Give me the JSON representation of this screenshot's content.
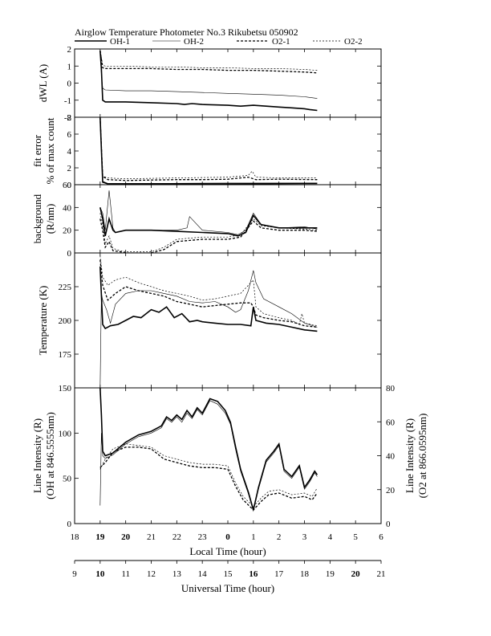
{
  "title": "Airglow Temperature Photometer No.3   Rikubetsu   050902",
  "legend": [
    {
      "name": "OH-1",
      "stroke": "#000000",
      "width": 1.6,
      "dash": ""
    },
    {
      "name": "OH-2",
      "stroke": "#000000",
      "width": 0.6,
      "dash": ""
    },
    {
      "name": "O2-1",
      "stroke": "#000000",
      "width": 1.3,
      "dash": "3,2"
    },
    {
      "name": "O2-2",
      "stroke": "#000000",
      "width": 0.7,
      "dash": "2,2"
    }
  ],
  "x_axis": {
    "range": [
      9,
      21
    ],
    "lt_label": "Local Time (hour)",
    "ut_label": "Universal Time (hour)",
    "lt_ticks": [
      {
        "x": 9,
        "label": "18",
        "bold": false
      },
      {
        "x": 10,
        "label": "19",
        "bold": true
      },
      {
        "x": 11,
        "label": "20",
        "bold": true
      },
      {
        "x": 12,
        "label": "21",
        "bold": false
      },
      {
        "x": 13,
        "label": "22",
        "bold": false
      },
      {
        "x": 14,
        "label": "23",
        "bold": false
      },
      {
        "x": 15,
        "label": "0",
        "bold": true
      },
      {
        "x": 16,
        "label": "1",
        "bold": false
      },
      {
        "x": 17,
        "label": "2",
        "bold": false
      },
      {
        "x": 18,
        "label": "3",
        "bold": false
      },
      {
        "x": 19,
        "label": "4",
        "bold": false
      },
      {
        "x": 20,
        "label": "5",
        "bold": false
      },
      {
        "x": 21,
        "label": "6",
        "bold": false
      }
    ],
    "ut_ticks": [
      {
        "x": 9,
        "label": "9",
        "bold": false
      },
      {
        "x": 10,
        "label": "10",
        "bold": true
      },
      {
        "x": 11,
        "label": "11",
        "bold": false
      },
      {
        "x": 12,
        "label": "12",
        "bold": false
      },
      {
        "x": 13,
        "label": "13",
        "bold": false
      },
      {
        "x": 14,
        "label": "14",
        "bold": false
      },
      {
        "x": 15,
        "label": "15",
        "bold": false
      },
      {
        "x": 16,
        "label": "16",
        "bold": true
      },
      {
        "x": 17,
        "label": "17",
        "bold": false
      },
      {
        "x": 18,
        "label": "18",
        "bold": false
      },
      {
        "x": 19,
        "label": "19",
        "bold": false
      },
      {
        "x": 20,
        "label": "20",
        "bold": true
      },
      {
        "x": 21,
        "label": "21",
        "bold": false
      }
    ]
  },
  "chart_data": [
    {
      "type": "line",
      "panel": "dwl",
      "ylabel": [
        "dWL (A)"
      ],
      "ylim": [
        -2,
        2
      ],
      "yticks": [
        -2,
        -1,
        0,
        1,
        2
      ],
      "series": [
        {
          "name": "OH-1",
          "x": [
            10.0,
            10.05,
            10.1,
            10.2,
            11,
            12,
            13,
            13.3,
            13.6,
            14,
            15,
            15.5,
            16,
            16.5,
            17,
            17.5,
            18,
            18.2,
            18.5
          ],
          "y": [
            1.9,
            0.8,
            -1.0,
            -1.1,
            -1.1,
            -1.15,
            -1.2,
            -1.25,
            -1.2,
            -1.25,
            -1.3,
            -1.35,
            -1.3,
            -1.35,
            -1.4,
            -1.45,
            -1.5,
            -1.55,
            -1.6
          ]
        },
        {
          "name": "OH-2",
          "x": [
            10.0,
            10.05,
            10.1,
            10.2,
            11,
            12,
            13,
            14,
            15,
            16,
            17,
            18,
            18.5
          ],
          "y": [
            1.9,
            0.5,
            -0.3,
            -0.4,
            -0.45,
            -0.45,
            -0.5,
            -0.55,
            -0.6,
            -0.65,
            -0.7,
            -0.8,
            -0.9
          ]
        },
        {
          "name": "O2-1",
          "x": [
            10.0,
            10.05,
            10.1,
            10.2,
            11,
            12,
            13,
            14,
            15,
            16,
            17,
            18,
            18.5
          ],
          "y": [
            1.9,
            1.4,
            0.9,
            0.85,
            0.85,
            0.85,
            0.8,
            0.8,
            0.75,
            0.75,
            0.7,
            0.65,
            0.6
          ]
        },
        {
          "name": "O2-2",
          "x": [
            10.0,
            10.05,
            10.1,
            10.2,
            11,
            12,
            13,
            14,
            15,
            16,
            17,
            18,
            18.5
          ],
          "y": [
            1.9,
            1.5,
            1.05,
            1.0,
            1.0,
            0.95,
            0.95,
            0.9,
            0.9,
            0.85,
            0.85,
            0.8,
            0.75
          ]
        }
      ]
    },
    {
      "type": "line",
      "panel": "fit-error",
      "ylabel": [
        "fit error",
        "% of max count"
      ],
      "ylim": [
        0,
        8
      ],
      "yticks": [
        0,
        2,
        4,
        6,
        8
      ],
      "series": [
        {
          "name": "OH-1",
          "x": [
            10.0,
            10.1,
            10.3,
            12,
            15,
            18.5
          ],
          "y": [
            8.0,
            0.3,
            0.1,
            0.1,
            0.1,
            0.15
          ]
        },
        {
          "name": "OH-2",
          "x": [
            10.0,
            10.1,
            10.3,
            12,
            15,
            18.5
          ],
          "y": [
            8.0,
            0.4,
            0.15,
            0.15,
            0.2,
            0.2
          ]
        },
        {
          "name": "O2-1",
          "x": [
            10.0,
            10.1,
            10.3,
            11,
            12,
            13,
            14,
            15,
            15.8,
            16.1,
            17,
            18.5
          ],
          "y": [
            8.0,
            1.0,
            0.6,
            0.5,
            0.55,
            0.6,
            0.6,
            0.65,
            0.9,
            0.6,
            0.65,
            0.6
          ]
        },
        {
          "name": "O2-2",
          "x": [
            10.0,
            10.1,
            10.3,
            11,
            12,
            13,
            14,
            15,
            15.8,
            15.95,
            16.1,
            17,
            18.5
          ],
          "y": [
            8.0,
            1.0,
            0.8,
            0.7,
            0.75,
            0.8,
            0.85,
            0.9,
            1.1,
            1.6,
            0.9,
            0.8,
            0.8
          ]
        }
      ]
    },
    {
      "type": "line",
      "panel": "background",
      "ylabel": [
        "background",
        "(R/nm)"
      ],
      "ylim": [
        0,
        60
      ],
      "yticks": [
        0,
        20,
        40,
        60
      ],
      "series": [
        {
          "name": "OH-1",
          "x": [
            10.0,
            10.1,
            10.2,
            10.35,
            10.5,
            10.6,
            11,
            12,
            13,
            14,
            15,
            15.4,
            15.7,
            16.0,
            16.3,
            17,
            18,
            18.5
          ],
          "y": [
            40,
            30,
            15,
            30,
            20,
            18,
            20,
            20,
            19,
            18,
            17,
            15,
            18,
            33,
            25,
            22,
            22,
            22
          ]
        },
        {
          "name": "OH-2",
          "x": [
            10.0,
            10.1,
            10.2,
            10.35,
            10.5,
            10.6,
            11,
            12,
            13,
            13.4,
            13.5,
            14,
            15,
            15.4,
            15.7,
            16.0,
            16.3,
            17,
            18,
            18.5
          ],
          "y": [
            40,
            35,
            20,
            55,
            22,
            18,
            20,
            20,
            20,
            22,
            32,
            20,
            18,
            16,
            20,
            35,
            25,
            22,
            23,
            21
          ]
        },
        {
          "name": "O2-1",
          "x": [
            10.0,
            10.1,
            10.2,
            10.35,
            10.5,
            10.8,
            11,
            12,
            12.5,
            13,
            14,
            15,
            15.5,
            16.0,
            16.3,
            17,
            18,
            18.5
          ],
          "y": [
            30,
            20,
            5,
            10,
            2,
            1,
            0,
            0,
            3,
            10,
            12,
            12,
            14,
            28,
            22,
            20,
            20,
            19
          ]
        },
        {
          "name": "O2-2",
          "x": [
            10.0,
            10.1,
            10.2,
            10.35,
            10.5,
            10.8,
            11,
            12,
            12.5,
            13,
            14,
            15,
            15.5,
            16.0,
            16.3,
            17,
            18,
            18.5
          ],
          "y": [
            35,
            25,
            8,
            15,
            4,
            2,
            1,
            1,
            5,
            12,
            14,
            14,
            16,
            30,
            24,
            22,
            21,
            20
          ]
        }
      ]
    },
    {
      "type": "line",
      "panel": "temperature",
      "ylabel": [
        "Temperature (K)"
      ],
      "ylim": [
        150,
        250
      ],
      "yticks": [
        175,
        200,
        225
      ],
      "series": [
        {
          "name": "OH-1",
          "x": [
            10.0,
            10.1,
            10.2,
            10.4,
            10.7,
            11,
            11.3,
            11.6,
            12,
            12.3,
            12.6,
            12.9,
            13.2,
            13.5,
            13.8,
            14,
            14.5,
            15,
            15.5,
            15.9,
            16.0,
            16.1,
            16.5,
            17,
            17.5,
            18,
            18.5
          ],
          "y": [
            240,
            197,
            194,
            196,
            197,
            200,
            203,
            202,
            208,
            206,
            210,
            202,
            205,
            199,
            200,
            199,
            198,
            197,
            197,
            196,
            210,
            200,
            198,
            197,
            195,
            193,
            192
          ]
        },
        {
          "name": "OH-2",
          "x": [
            10.0,
            10.05,
            10.1,
            10.25,
            10.4,
            10.6,
            11,
            11.5,
            12,
            12.5,
            13,
            13.5,
            14,
            14.5,
            15,
            15.3,
            15.5,
            15.8,
            16.0,
            16.1,
            16.4,
            17,
            17.5,
            18,
            18.5
          ],
          "y": [
            150,
            220,
            215,
            208,
            198,
            212,
            220,
            222,
            222,
            220,
            218,
            214,
            213,
            214,
            210,
            206,
            208,
            222,
            237,
            228,
            216,
            210,
            205,
            198,
            195
          ]
        },
        {
          "name": "O2-1",
          "x": [
            10.0,
            10.1,
            10.3,
            10.6,
            11,
            11.5,
            12,
            12.5,
            13,
            13.5,
            14,
            14.5,
            15,
            15.5,
            15.9,
            16.0,
            16.1,
            16.4,
            17,
            17.5,
            18,
            18.5
          ],
          "y": [
            245,
            226,
            215,
            220,
            225,
            222,
            220,
            218,
            214,
            212,
            210,
            211,
            212,
            213,
            213,
            210,
            204,
            202,
            200,
            199,
            196,
            195
          ]
        },
        {
          "name": "O2-2",
          "x": [
            10.0,
            10.1,
            10.3,
            10.6,
            11,
            11.5,
            12,
            12.5,
            13,
            13.5,
            14,
            14.5,
            15,
            15.5,
            15.8,
            16.0,
            16.1,
            16.4,
            17,
            17.5,
            17.8,
            17.9,
            18,
            18.5
          ],
          "y": [
            248,
            232,
            226,
            230,
            232,
            228,
            225,
            222,
            220,
            218,
            215,
            216,
            218,
            220,
            226,
            230,
            210,
            205,
            202,
            200,
            197,
            205,
            198,
            196
          ]
        }
      ]
    },
    {
      "type": "line",
      "panel": "line-intensity",
      "ylabel": [
        "Line Intensity (R)",
        "(OH at 846.5555nm)"
      ],
      "ylabel_right": [
        "Line Intensity (R)",
        "(O2 at 866.0595nm)"
      ],
      "ylim": [
        0,
        150
      ],
      "yticks": [
        0,
        50,
        100,
        150
      ],
      "ylim_right": [
        0,
        80
      ],
      "yticks_right": [
        0,
        20,
        40,
        60,
        80
      ],
      "series": [
        {
          "name": "OH-1",
          "axis": "left",
          "x": [
            10.0,
            10.05,
            10.1,
            10.2,
            10.5,
            11,
            11.5,
            12,
            12.4,
            12.6,
            12.8,
            13,
            13.2,
            13.4,
            13.6,
            13.8,
            14,
            14.3,
            14.6,
            14.9,
            15.1,
            15.3,
            15.5,
            15.8,
            16.0,
            16.2,
            16.5,
            16.8,
            17.0,
            17.2,
            17.5,
            17.8,
            18.0,
            18.2,
            18.4,
            18.5
          ],
          "y": [
            150,
            120,
            80,
            75,
            78,
            90,
            98,
            102,
            108,
            118,
            114,
            120,
            115,
            125,
            118,
            128,
            122,
            138,
            135,
            125,
            112,
            85,
            60,
            35,
            15,
            40,
            70,
            80,
            88,
            60,
            52,
            64,
            40,
            48,
            58,
            54
          ]
        },
        {
          "name": "OH-2",
          "axis": "left",
          "x": [
            10.0,
            10.05,
            10.1,
            10.2,
            10.5,
            11,
            11.5,
            12,
            12.4,
            12.6,
            12.8,
            13,
            13.2,
            13.4,
            13.6,
            13.8,
            14,
            14.3,
            14.6,
            14.9,
            15.1,
            15.3,
            15.5,
            15.8,
            16.0,
            16.2,
            16.5,
            16.8,
            17.0,
            17.2,
            17.5,
            17.8,
            18.0,
            18.2,
            18.4,
            18.5
          ],
          "y": [
            20,
            100,
            75,
            72,
            76,
            88,
            96,
            100,
            106,
            116,
            112,
            118,
            112,
            122,
            116,
            126,
            120,
            136,
            132,
            122,
            110,
            82,
            58,
            33,
            14,
            38,
            68,
            78,
            86,
            58,
            50,
            62,
            38,
            46,
            56,
            52
          ]
        },
        {
          "name": "O2-1",
          "axis": "right",
          "x": [
            10.0,
            10.2,
            10.5,
            11,
            11.5,
            12,
            12.5,
            13,
            13.5,
            14,
            14.5,
            15,
            15.3,
            15.6,
            16.0,
            16.3,
            16.6,
            17,
            17.5,
            18,
            18.3,
            18.5
          ],
          "y": [
            33,
            36,
            42,
            45,
            45,
            44,
            38,
            36,
            34,
            33,
            33,
            32,
            22,
            14,
            8,
            13,
            17,
            18,
            15,
            16,
            14,
            18
          ]
        },
        {
          "name": "O2-2",
          "axis": "right",
          "x": [
            10.0,
            10.2,
            10.5,
            11,
            11.5,
            12,
            12.5,
            13,
            13.5,
            14,
            14.5,
            15,
            15.3,
            15.6,
            16.0,
            16.3,
            16.6,
            17,
            17.5,
            18,
            18.3,
            18.5
          ],
          "y": [
            32,
            38,
            44,
            47,
            46,
            45,
            40,
            38,
            36,
            35,
            35,
            34,
            24,
            16,
            10,
            15,
            19,
            20,
            17,
            18,
            16,
            21
          ]
        }
      ]
    }
  ]
}
